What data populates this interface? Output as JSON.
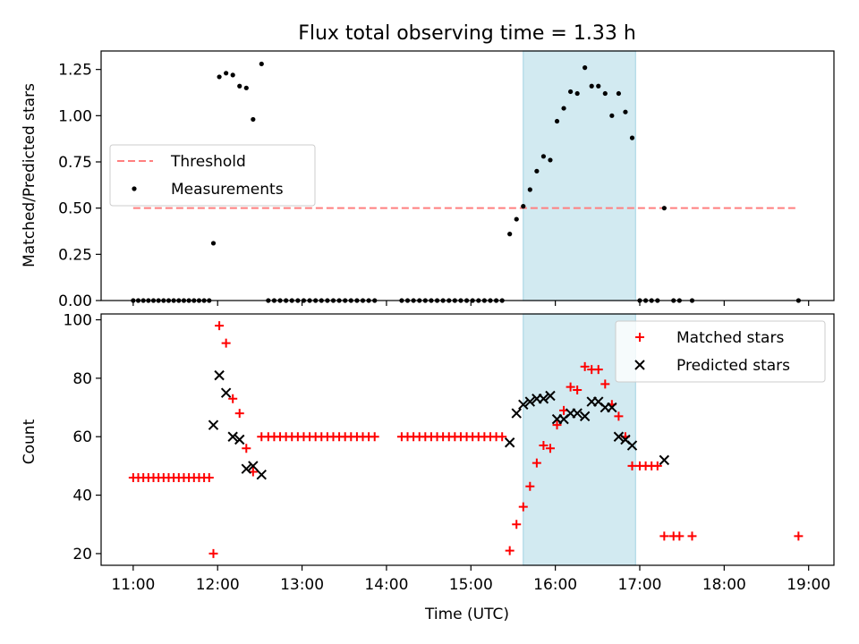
{
  "chart_data": {
    "title": "Flux total observing time = 1.33 h",
    "xlabel": "Time (UTC)",
    "x_unit": "hours (UTC)",
    "xlim": [
      10.62,
      19.3
    ],
    "xticks": [
      {
        "value": 11,
        "label": "11:00"
      },
      {
        "value": 12,
        "label": "12:00"
      },
      {
        "value": 13,
        "label": "13:00"
      },
      {
        "value": 14,
        "label": "14:00"
      },
      {
        "value": 15,
        "label": "15:00"
      },
      {
        "value": 16,
        "label": "16:00"
      },
      {
        "value": 17,
        "label": "17:00"
      },
      {
        "value": 18,
        "label": "18:00"
      },
      {
        "value": 19,
        "label": "19:00"
      }
    ],
    "shaded_span": {
      "x0": 15.62,
      "x1": 16.95,
      "color": "#add8e6"
    },
    "panels": [
      {
        "ylabel": "Matched/Predicted stars",
        "ylim": [
          0,
          1.35
        ],
        "yticks": [
          0,
          0.25,
          0.5,
          0.75,
          1.0,
          1.25
        ],
        "ytick_labels": [
          "0.00",
          "0.25",
          "0.50",
          "0.75",
          "1.00",
          "1.25"
        ],
        "legend_position": "center-left",
        "series": [
          {
            "name": "Threshold",
            "type": "line",
            "style": "dashed",
            "color": "#ff7f7f",
            "x": [
              11.0,
              18.88
            ],
            "y": [
              0.5,
              0.5
            ]
          },
          {
            "name": "Measurements",
            "type": "scatter",
            "marker": "dot",
            "color": "#000000",
            "x": [
              11.0,
              11.06,
              11.12,
              11.18,
              11.24,
              11.3,
              11.36,
              11.42,
              11.48,
              11.54,
              11.6,
              11.66,
              11.72,
              11.78,
              11.84,
              11.9,
              11.95,
              12.02,
              12.1,
              12.18,
              12.26,
              12.34,
              12.42,
              12.52,
              12.6,
              12.67,
              12.74,
              12.81,
              12.88,
              12.95,
              13.02,
              13.09,
              13.16,
              13.23,
              13.3,
              13.37,
              13.44,
              13.51,
              13.58,
              13.65,
              13.72,
              13.79,
              13.86,
              14.18,
              14.25,
              14.32,
              14.39,
              14.46,
              14.53,
              14.6,
              14.67,
              14.74,
              14.81,
              14.88,
              14.95,
              15.02,
              15.09,
              15.16,
              15.23,
              15.3,
              15.37,
              15.46,
              15.54,
              15.62,
              15.7,
              15.78,
              15.86,
              15.94,
              16.02,
              16.1,
              16.18,
              16.26,
              16.35,
              16.43,
              16.51,
              16.59,
              16.67,
              16.75,
              16.83,
              16.91,
              17.0,
              17.07,
              17.14,
              17.21,
              17.29,
              17.4,
              17.47,
              17.62,
              18.88
            ],
            "y": [
              0,
              0,
              0,
              0,
              0,
              0,
              0,
              0,
              0,
              0,
              0,
              0,
              0,
              0,
              0,
              0,
              0.31,
              1.21,
              1.23,
              1.22,
              1.16,
              1.15,
              0.98,
              1.28,
              0,
              0,
              0,
              0,
              0,
              0,
              0,
              0,
              0,
              0,
              0,
              0,
              0,
              0,
              0,
              0,
              0,
              0,
              0,
              0,
              0,
              0,
              0,
              0,
              0,
              0,
              0,
              0,
              0,
              0,
              0,
              0,
              0,
              0,
              0,
              0,
              0,
              0.36,
              0.44,
              0.51,
              0.6,
              0.7,
              0.78,
              0.76,
              0.97,
              1.04,
              1.13,
              1.12,
              1.26,
              1.16,
              1.16,
              1.12,
              1.0,
              1.12,
              1.02,
              0.88,
              0,
              0,
              0,
              0,
              0.5,
              0,
              0,
              0,
              0
            ]
          }
        ]
      },
      {
        "ylabel": "Count",
        "ylim": [
          16,
          102
        ],
        "yticks": [
          20,
          40,
          60,
          80,
          100
        ],
        "ytick_labels": [
          "20",
          "40",
          "60",
          "80",
          "100"
        ],
        "legend_position": "upper-right",
        "series": [
          {
            "name": "Matched stars",
            "type": "scatter",
            "marker": "plus",
            "color": "#ff0000",
            "x": [
              11.0,
              11.06,
              11.12,
              11.18,
              11.24,
              11.3,
              11.36,
              11.42,
              11.48,
              11.54,
              11.6,
              11.66,
              11.72,
              11.78,
              11.84,
              11.9,
              11.95,
              12.02,
              12.1,
              12.18,
              12.26,
              12.34,
              12.42,
              12.52,
              12.6,
              12.67,
              12.74,
              12.81,
              12.88,
              12.95,
              13.02,
              13.09,
              13.16,
              13.23,
              13.3,
              13.37,
              13.44,
              13.51,
              13.58,
              13.65,
              13.72,
              13.79,
              13.86,
              14.18,
              14.25,
              14.32,
              14.39,
              14.46,
              14.53,
              14.6,
              14.67,
              14.74,
              14.81,
              14.88,
              14.95,
              15.02,
              15.09,
              15.16,
              15.23,
              15.3,
              15.37,
              15.46,
              15.54,
              15.62,
              15.7,
              15.78,
              15.86,
              15.94,
              16.02,
              16.1,
              16.18,
              16.26,
              16.35,
              16.43,
              16.51,
              16.59,
              16.67,
              16.75,
              16.83,
              16.91,
              17.0,
              17.07,
              17.14,
              17.21,
              17.29,
              17.4,
              17.47,
              17.62,
              18.88
            ],
            "y": [
              46,
              46,
              46,
              46,
              46,
              46,
              46,
              46,
              46,
              46,
              46,
              46,
              46,
              46,
              46,
              46,
              20,
              98,
              92,
              73,
              68,
              56,
              48,
              60,
              60,
              60,
              60,
              60,
              60,
              60,
              60,
              60,
              60,
              60,
              60,
              60,
              60,
              60,
              60,
              60,
              60,
              60,
              60,
              60,
              60,
              60,
              60,
              60,
              60,
              60,
              60,
              60,
              60,
              60,
              60,
              60,
              60,
              60,
              60,
              60,
              60,
              21,
              30,
              36,
              43,
              51,
              57,
              56,
              64,
              69,
              77,
              76,
              84,
              83,
              83,
              78,
              71,
              67,
              60,
              50,
              50,
              50,
              50,
              50,
              26,
              26,
              26,
              26,
              26
            ]
          },
          {
            "name": "Predicted stars",
            "type": "scatter",
            "marker": "x",
            "color": "#000000",
            "x": [
              11.95,
              12.02,
              12.1,
              12.18,
              12.26,
              12.34,
              12.42,
              12.52,
              15.46,
              15.54,
              15.62,
              15.7,
              15.78,
              15.86,
              15.94,
              16.02,
              16.1,
              16.18,
              16.26,
              16.35,
              16.43,
              16.51,
              16.59,
              16.67,
              16.75,
              16.83,
              16.91,
              17.29
            ],
            "y": [
              64,
              81,
              75,
              60,
              59,
              49,
              50,
              47,
              58,
              68,
              71,
              72,
              73,
              73,
              74,
              66,
              66,
              68,
              68,
              67,
              72,
              72,
              70,
              70,
              60,
              59,
              57,
              52
            ]
          }
        ]
      }
    ]
  }
}
